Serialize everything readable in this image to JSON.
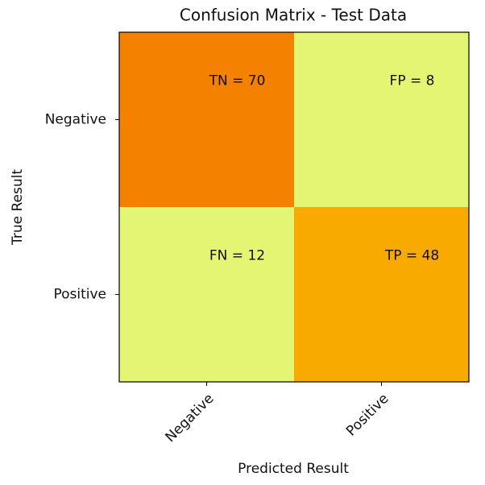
{
  "chart_data": {
    "type": "heatmap",
    "title": "Confusion Matrix - Test Data",
    "x_label": "Predicted Result",
    "y_label": "True Result",
    "x_categories": [
      "Negative",
      "Positive"
    ],
    "y_categories": [
      "Negative",
      "Positive"
    ],
    "values": [
      [
        70,
        8
      ],
      [
        12,
        48
      ]
    ],
    "value_labels": [
      [
        "TN = 70",
        "FP = 8"
      ],
      [
        "FN = 12",
        "TP = 48"
      ]
    ],
    "colors": [
      [
        "#f58100",
        "#e3f573"
      ],
      [
        "#e3f573",
        "#f9aa00"
      ]
    ]
  }
}
